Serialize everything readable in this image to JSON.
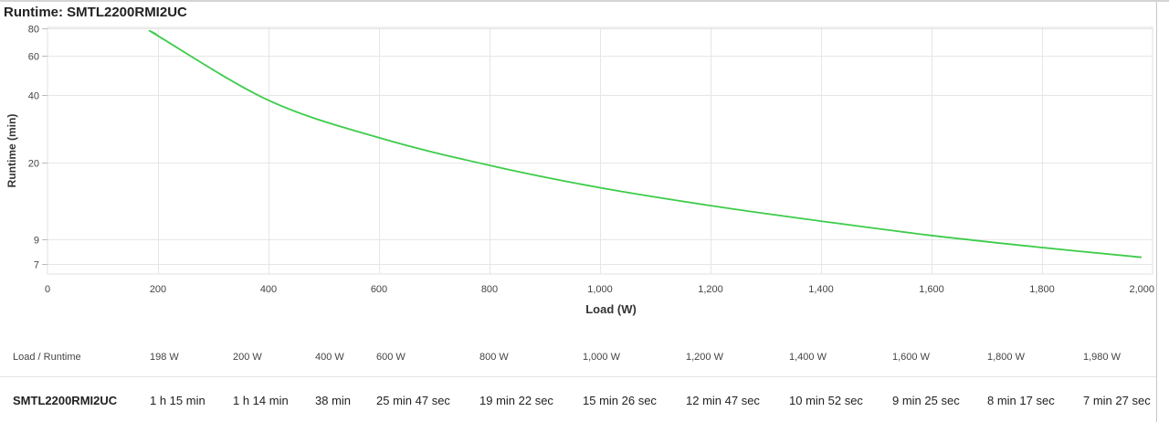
{
  "title": "Runtime: SMTL2200RMI2UC",
  "chart_data": {
    "type": "line",
    "xlabel": "Load (W)",
    "ylabel": "Runtime (min)",
    "xlim": [
      0,
      2000
    ],
    "ylim": [
      5,
      80
    ],
    "x_ticks": [
      0,
      200,
      400,
      600,
      800,
      1000,
      1200,
      1400,
      1600,
      1800,
      2000
    ],
    "x_tick_labels": [
      "0",
      "200",
      "400",
      "600",
      "800",
      "1,000",
      "1,200",
      "1,400",
      "1,600",
      "1,800",
      "2,000"
    ],
    "y_ticks": [
      7,
      9,
      20,
      40,
      60,
      80
    ],
    "y_tick_labels": [
      "7",
      "9",
      "20",
      "40",
      "60",
      "80"
    ],
    "grid": true,
    "color": "#3dcc4a",
    "series": [
      {
        "x": [
          198,
          200,
          400,
          600,
          800,
          1000,
          1200,
          1400,
          1600,
          1800,
          1980
        ],
        "y": [
          75,
          74,
          38,
          25.8,
          19.4,
          15.4,
          12.8,
          10.9,
          9.4,
          8.3,
          7.5
        ]
      }
    ]
  },
  "table": {
    "header_label": "Load / Runtime",
    "loads": [
      "198 W",
      "200 W",
      "400 W",
      "600 W",
      "800 W",
      "1,000 W",
      "1,200 W",
      "1,400 W",
      "1,600 W",
      "1,800 W",
      "1,980 W"
    ],
    "model": "SMTL2200RMI2UC",
    "runtimes": [
      "1 h 15 min",
      "1 h 14 min",
      "38 min",
      "25 min 47 sec",
      "19 min 22 sec",
      "15 min 26 sec",
      "12 min 47 sec",
      "10 min 52 sec",
      "9 min 25 sec",
      "8 min 17 sec",
      "7 min 27 sec"
    ]
  }
}
